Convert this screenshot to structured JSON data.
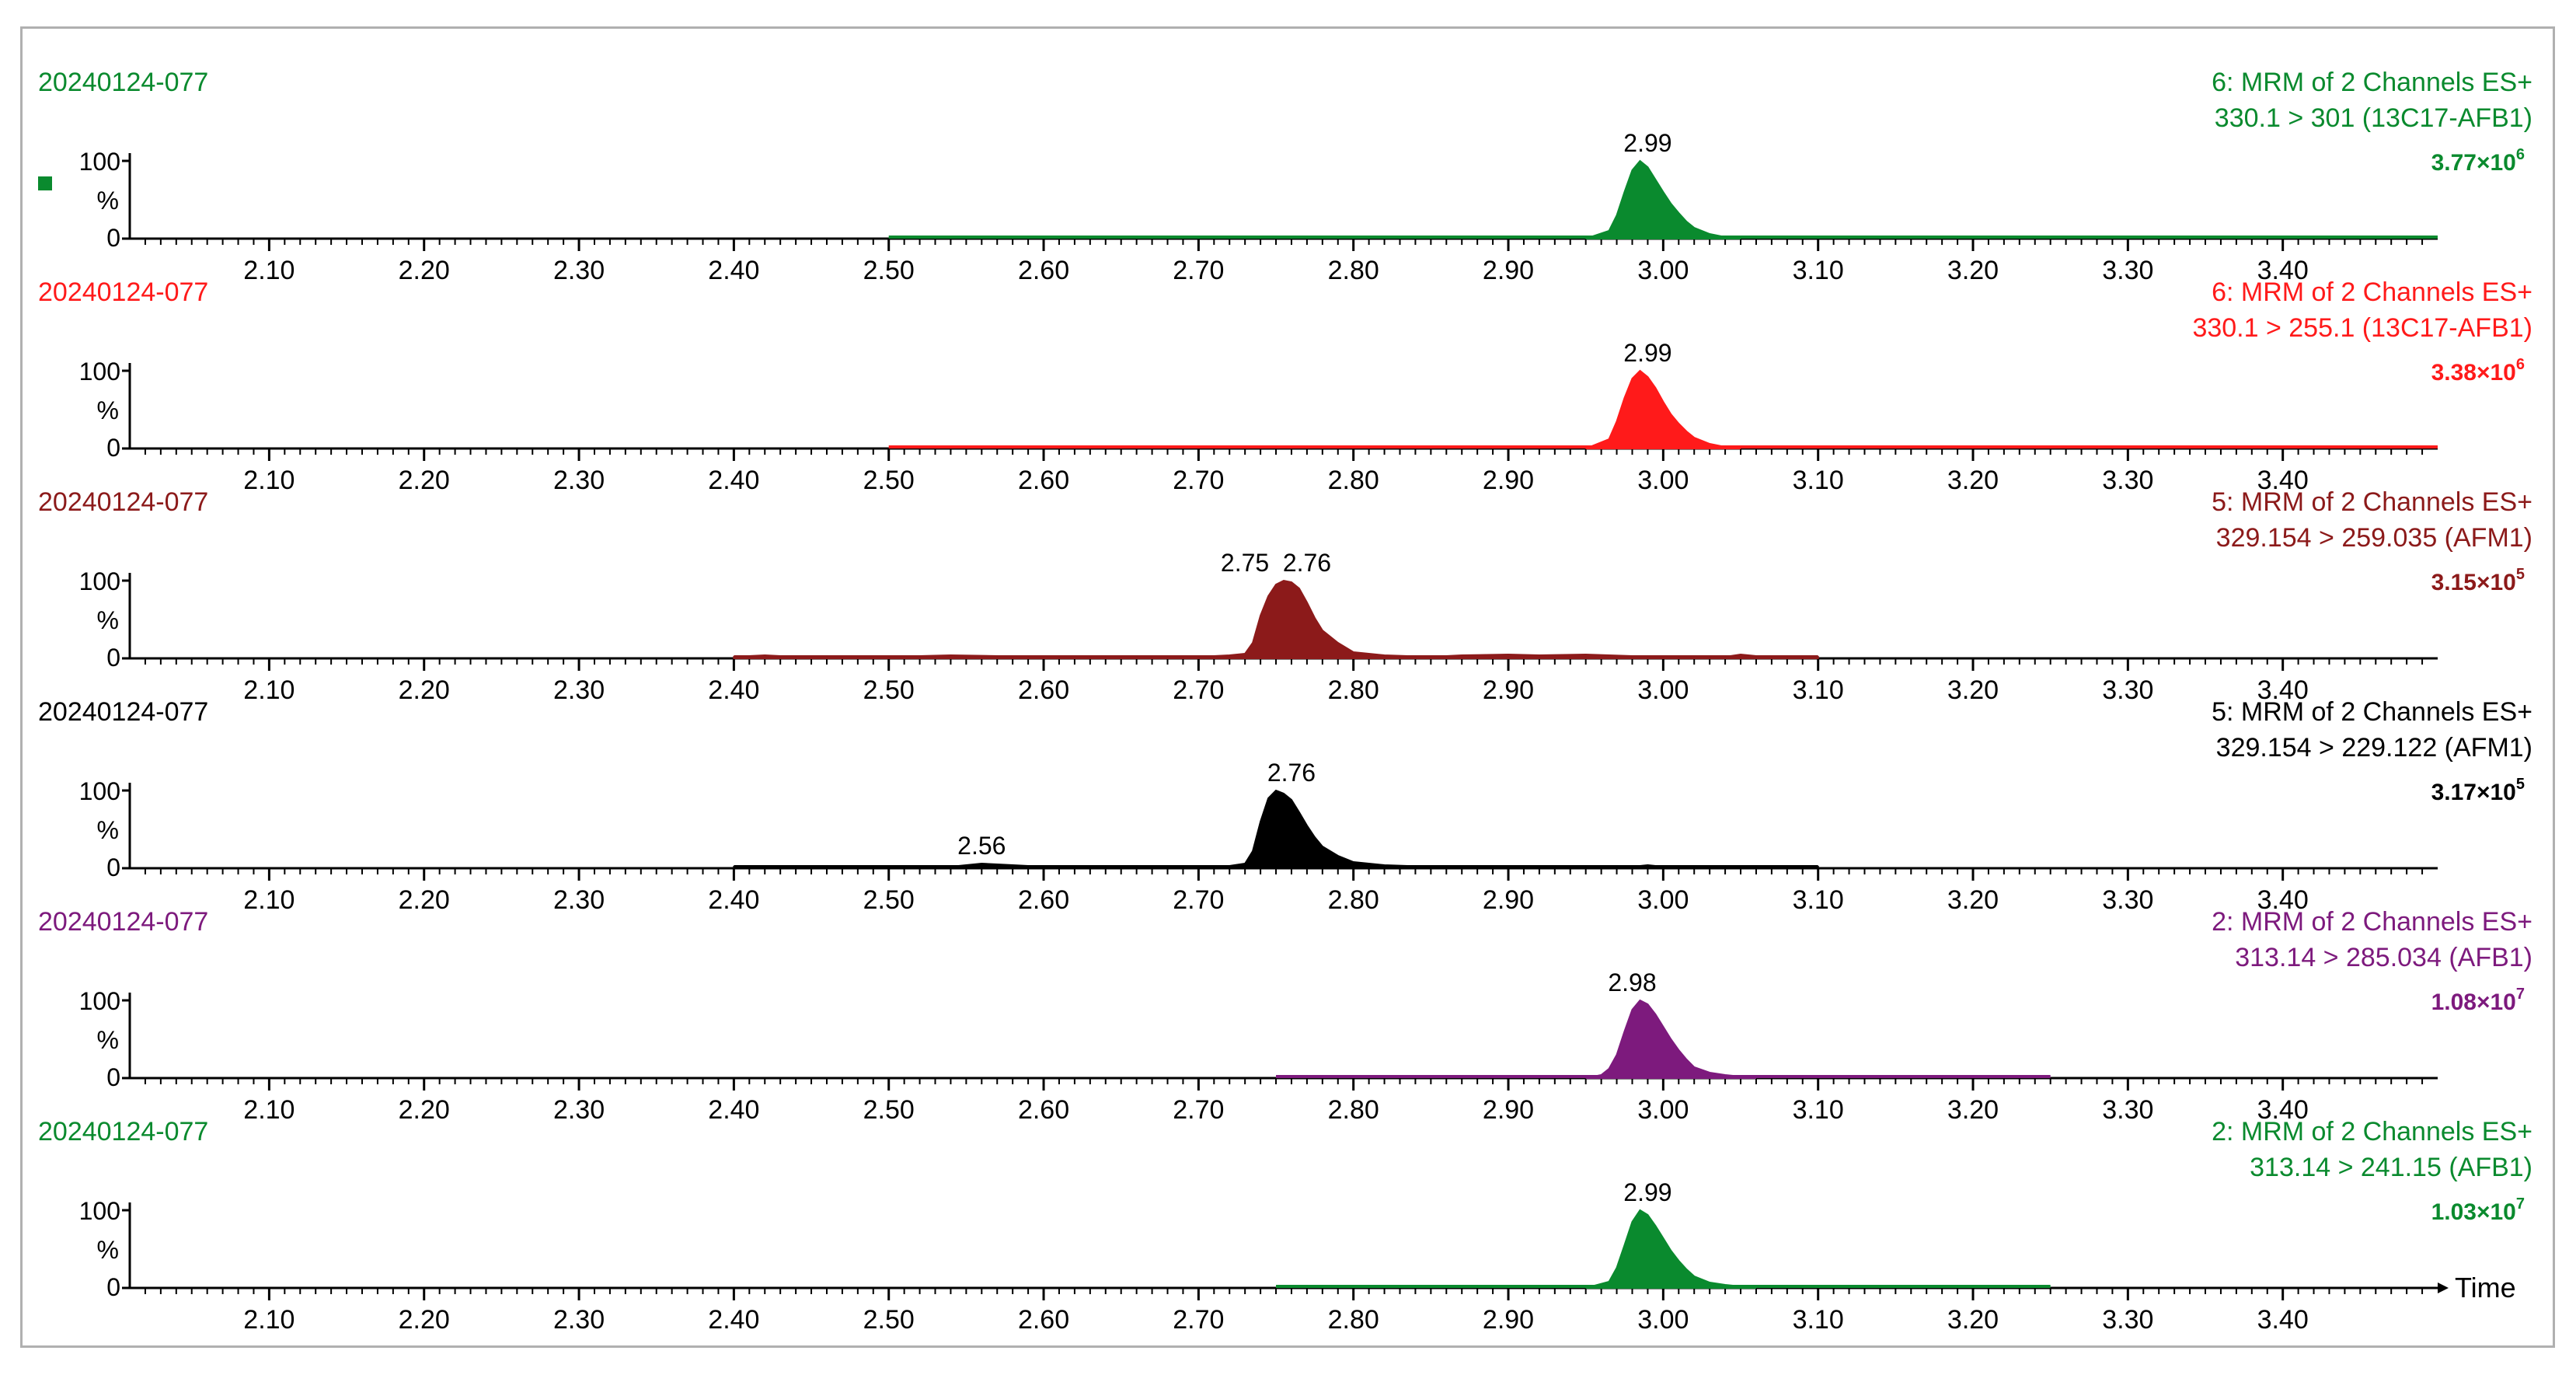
{
  "chart_data": [
    {
      "type": "area",
      "sample": "20240124-077",
      "title_lines": [
        "6: MRM of 2 Channels ES+",
        "330.1 > 301 (13C17-AFB1)"
      ],
      "intensity_base": "3.77×10",
      "intensity_exp": "6",
      "color": "#0a8a2e",
      "marker": true,
      "y_ticks": [
        "100",
        "%",
        "0"
      ],
      "ylim": [
        0,
        100
      ],
      "xlim": [
        2.01,
        3.5
      ],
      "x_ticks": [
        "2.10",
        "2.20",
        "2.30",
        "2.40",
        "2.50",
        "2.60",
        "2.70",
        "2.80",
        "2.90",
        "3.00",
        "3.10",
        "3.20",
        "3.30",
        "3.40"
      ],
      "baseline_range": [
        2.5,
        3.5
      ],
      "x": [
        2.95,
        2.965,
        2.97,
        2.975,
        2.98,
        2.985,
        2.99,
        2.995,
        3.0,
        3.005,
        3.01,
        3.015,
        3.02,
        3.03,
        3.04,
        3.05
      ],
      "y": [
        0,
        10,
        30,
        60,
        88,
        100,
        92,
        76,
        60,
        45,
        33,
        22,
        14,
        6,
        2,
        0
      ],
      "peak_labels": [
        {
          "x": 2.99,
          "text": "2.99"
        }
      ],
      "show_time_label": false
    },
    {
      "type": "area",
      "sample": "20240124-077",
      "title_lines": [
        "6: MRM of 2 Channels ES+",
        "330.1 > 255.1 (13C17-AFB1)"
      ],
      "intensity_base": "3.38×10",
      "intensity_exp": "6",
      "color": "#ff1a1a",
      "marker": false,
      "y_ticks": [
        "100",
        "%",
        "0"
      ],
      "ylim": [
        0,
        100
      ],
      "xlim": [
        2.01,
        3.5
      ],
      "x_ticks": [
        "2.10",
        "2.20",
        "2.30",
        "2.40",
        "2.50",
        "2.60",
        "2.70",
        "2.80",
        "2.90",
        "3.00",
        "3.10",
        "3.20",
        "3.30",
        "3.40"
      ],
      "baseline_range": [
        2.5,
        3.5
      ],
      "x": [
        2.95,
        2.965,
        2.97,
        2.975,
        2.98,
        2.985,
        2.99,
        2.995,
        3.0,
        3.005,
        3.01,
        3.015,
        3.02,
        3.03,
        3.04,
        3.05
      ],
      "y": [
        0,
        12,
        35,
        65,
        90,
        100,
        92,
        78,
        60,
        44,
        32,
        22,
        14,
        6,
        2,
        0
      ],
      "peak_labels": [
        {
          "x": 2.99,
          "text": "2.99"
        }
      ],
      "show_time_label": false
    },
    {
      "type": "area",
      "sample": "20240124-077",
      "title_lines": [
        "5: MRM of 2 Channels ES+",
        "329.154 > 259.035 (AFM1)"
      ],
      "intensity_base": "3.15×10",
      "intensity_exp": "5",
      "color": "#8c1a1a",
      "marker": false,
      "y_ticks": [
        "100",
        "%",
        "0"
      ],
      "ylim": [
        0,
        100
      ],
      "xlim": [
        2.01,
        3.5
      ],
      "x_ticks": [
        "2.10",
        "2.20",
        "2.30",
        "2.40",
        "2.50",
        "2.60",
        "2.70",
        "2.80",
        "2.90",
        "3.00",
        "3.10",
        "3.20",
        "3.30",
        "3.40"
      ],
      "baseline_range": [
        2.4,
        3.1
      ],
      "x": [
        2.4,
        2.42,
        2.44,
        2.46,
        2.5,
        2.54,
        2.6,
        2.66,
        2.7,
        2.72,
        2.73,
        2.735,
        2.74,
        2.745,
        2.75,
        2.755,
        2.76,
        2.765,
        2.77,
        2.775,
        2.78,
        2.79,
        2.8,
        2.82,
        2.85,
        2.87,
        2.9,
        2.92,
        2.95,
        2.98,
        3.0,
        3.04,
        3.05,
        3.06,
        3.08,
        3.1
      ],
      "y": [
        2,
        4,
        2,
        3,
        2,
        4,
        2,
        3,
        2,
        4,
        6,
        20,
        55,
        80,
        95,
        100,
        98,
        90,
        72,
        52,
        36,
        20,
        8,
        4,
        2,
        4,
        5,
        4,
        5,
        3,
        2,
        2,
        5,
        3,
        3,
        2
      ],
      "peak_labels": [
        {
          "x": 2.75,
          "text": "2.75"
        },
        {
          "x": 2.76,
          "text": "2.76"
        }
      ],
      "show_time_label": false
    },
    {
      "type": "area",
      "sample": "20240124-077",
      "title_lines": [
        "5: MRM of 2 Channels ES+",
        "329.154 > 229.122 (AFM1)"
      ],
      "intensity_base": "3.17×10",
      "intensity_exp": "5",
      "color": "#000000",
      "marker": false,
      "y_ticks": [
        "100",
        "%",
        "0"
      ],
      "ylim": [
        0,
        100
      ],
      "xlim": [
        2.01,
        3.5
      ],
      "x_ticks": [
        "2.10",
        "2.20",
        "2.30",
        "2.40",
        "2.50",
        "2.60",
        "2.70",
        "2.80",
        "2.90",
        "3.00",
        "3.10",
        "3.20",
        "3.30",
        "3.40"
      ],
      "baseline_range": [
        2.4,
        3.1
      ],
      "x": [
        2.4,
        2.44,
        2.48,
        2.5,
        2.54,
        2.55,
        2.56,
        2.57,
        2.59,
        2.6,
        2.66,
        2.7,
        2.72,
        2.73,
        2.735,
        2.74,
        2.745,
        2.75,
        2.755,
        2.76,
        2.765,
        2.77,
        2.775,
        2.78,
        2.79,
        2.8,
        2.82,
        2.85,
        2.9,
        2.95,
        2.98,
        2.99,
        3.0,
        3.05,
        3.1
      ],
      "y": [
        2,
        3,
        2,
        3,
        2,
        4,
        6,
        5,
        3,
        2,
        2,
        2,
        3,
        6,
        22,
        60,
        90,
        100,
        96,
        88,
        72,
        55,
        40,
        28,
        16,
        8,
        4,
        2,
        2,
        2,
        2,
        4,
        2,
        2,
        2
      ],
      "peak_labels": [
        {
          "x": 2.56,
          "text": "2.56"
        },
        {
          "x": 2.76,
          "text": "2.76"
        }
      ],
      "show_time_label": false
    },
    {
      "type": "area",
      "sample": "20240124-077",
      "title_lines": [
        "2: MRM of 2 Channels ES+",
        "313.14 > 285.034 (AFB1)"
      ],
      "intensity_base": "1.08×10",
      "intensity_exp": "7",
      "color": "#7d1a7d",
      "marker": false,
      "y_ticks": [
        "100",
        "%",
        "0"
      ],
      "ylim": [
        0,
        100
      ],
      "xlim": [
        2.01,
        3.5
      ],
      "x_ticks": [
        "2.10",
        "2.20",
        "2.30",
        "2.40",
        "2.50",
        "2.60",
        "2.70",
        "2.80",
        "2.90",
        "3.00",
        "3.10",
        "3.20",
        "3.30",
        "3.40"
      ],
      "baseline_range": [
        2.75,
        3.25
      ],
      "x": [
        2.95,
        2.96,
        2.965,
        2.97,
        2.975,
        2.98,
        2.985,
        2.99,
        2.995,
        3.0,
        3.005,
        3.01,
        3.015,
        3.02,
        3.03,
        3.04,
        3.05,
        3.06
      ],
      "y": [
        0,
        4,
        12,
        30,
        60,
        88,
        100,
        95,
        82,
        66,
        50,
        36,
        24,
        14,
        7,
        4,
        2,
        0
      ],
      "peak_labels": [
        {
          "x": 2.98,
          "text": "2.98"
        }
      ],
      "show_time_label": false
    },
    {
      "type": "area",
      "sample": "20240124-077",
      "title_lines": [
        "2: MRM of 2 Channels ES+",
        "313.14 > 241.15 (AFB1)"
      ],
      "intensity_base": "1.03×10",
      "intensity_exp": "7",
      "color": "#0a8a2e",
      "marker": false,
      "y_ticks": [
        "100",
        "%",
        "0"
      ],
      "ylim": [
        0,
        100
      ],
      "xlim": [
        2.01,
        3.5
      ],
      "x_ticks": [
        "2.10",
        "2.20",
        "2.30",
        "2.40",
        "2.50",
        "2.60",
        "2.70",
        "2.80",
        "2.90",
        "3.00",
        "3.10",
        "3.20",
        "3.30",
        "3.40"
      ],
      "baseline_range": [
        2.75,
        3.25
      ],
      "x": [
        2.95,
        2.965,
        2.97,
        2.975,
        2.98,
        2.985,
        2.99,
        2.995,
        3.0,
        3.005,
        3.01,
        3.015,
        3.02,
        3.03,
        3.04,
        3.05,
        3.06
      ],
      "y": [
        0,
        8,
        26,
        55,
        85,
        100,
        94,
        80,
        64,
        48,
        35,
        24,
        15,
        7,
        4,
        2,
        0
      ],
      "peak_labels": [
        {
          "x": 2.99,
          "text": "2.99"
        }
      ],
      "show_time_label": true,
      "time_label": "Time"
    }
  ]
}
